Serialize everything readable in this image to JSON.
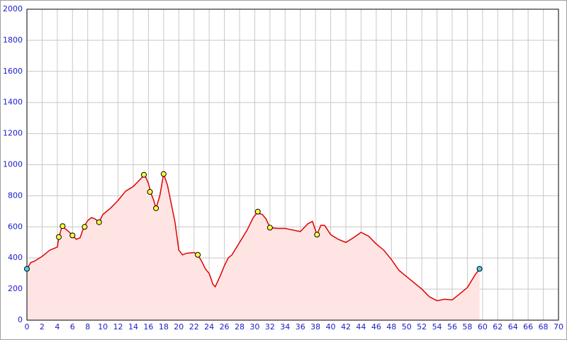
{
  "chart_data": {
    "type": "area",
    "x": [
      0,
      0.5,
      1,
      2,
      3,
      3.5,
      4,
      4.2,
      4.6,
      5,
      5.5,
      6,
      6.5,
      7,
      7.5,
      8,
      8.5,
      9,
      9.5,
      10,
      11,
      12,
      13,
      14,
      15,
      15.5,
      16,
      16.3,
      16.7,
      17,
      17.5,
      18,
      18.5,
      19,
      19.5,
      20,
      20.5,
      21,
      22,
      22.5,
      23,
      23.5,
      24,
      24.5,
      24.8,
      25.5,
      26,
      26.5,
      27,
      28,
      29,
      29.8,
      30.3,
      31,
      31.5,
      32,
      33,
      34,
      35,
      36,
      37,
      37.6,
      38.2,
      38.7,
      39.2,
      40,
      41,
      42,
      43,
      44,
      45,
      46,
      47,
      48,
      49,
      50,
      51,
      52,
      53,
      54,
      55,
      56,
      57,
      58,
      59,
      59.6
    ],
    "series": [
      {
        "color": "#e00000",
        "fill": "#ffe4e4",
        "values": [
          330,
          370,
          380,
          410,
          450,
          460,
          470,
          530,
          600,
          590,
          570,
          545,
          520,
          530,
          600,
          640,
          660,
          650,
          630,
          680,
          720,
          770,
          830,
          860,
          910,
          935,
          880,
          820,
          770,
          720,
          800,
          940,
          870,
          750,
          630,
          450,
          420,
          430,
          435,
          420,
          380,
          330,
          300,
          230,
          215,
          290,
          350,
          400,
          420,
          500,
          580,
          660,
          690,
          680,
          650,
          595,
          590,
          590,
          580,
          570,
          620,
          635,
          550,
          610,
          610,
          550,
          520,
          500,
          530,
          565,
          540,
          490,
          450,
          390,
          320,
          280,
          240,
          200,
          150,
          125,
          135,
          130,
          170,
          210,
          290,
          330
        ]
      }
    ],
    "markers": [
      {
        "color": "#ffff40",
        "x": [
          4.2,
          4.7,
          6,
          7.6,
          9.5,
          15.4,
          16.2,
          17,
          18,
          22.5,
          30.4,
          32,
          38.2
        ],
        "values": [
          535,
          605,
          545,
          600,
          630,
          935,
          825,
          720,
          940,
          420,
          698,
          595,
          550
        ]
      },
      {
        "color": "#40d8f0",
        "x": [
          0,
          59.6
        ],
        "values": [
          330,
          330
        ]
      }
    ],
    "xlim": [
      0,
      70
    ],
    "xticks": [
      0,
      2,
      4,
      6,
      8,
      10,
      12,
      14,
      16,
      18,
      20,
      22,
      24,
      26,
      28,
      30,
      32,
      34,
      36,
      38,
      40,
      42,
      44,
      46,
      48,
      50,
      52,
      54,
      56,
      58,
      60,
      62,
      64,
      66,
      68,
      70
    ],
    "ylim": [
      0,
      2000
    ],
    "yticks": [
      0,
      200,
      400,
      600,
      800,
      1000,
      1200,
      1400,
      1600,
      1800,
      2000
    ],
    "grid": true
  }
}
